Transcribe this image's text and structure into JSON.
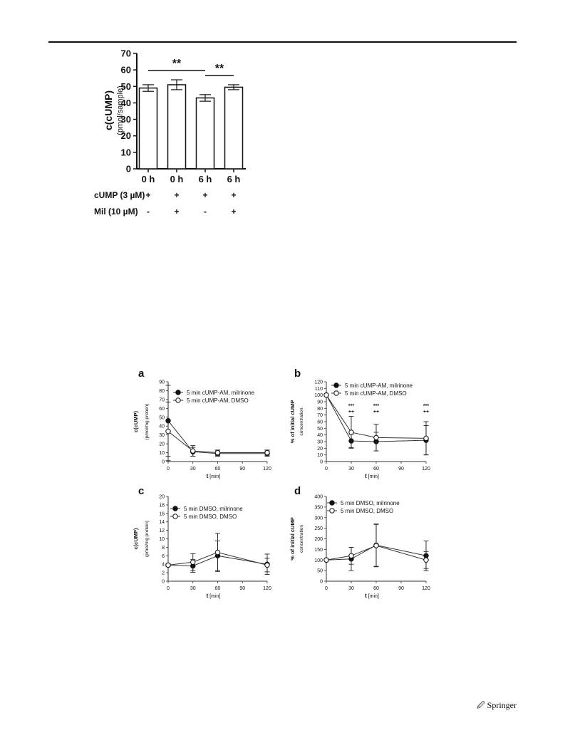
{
  "footer": {
    "publisher": "Springer"
  },
  "chart_data": [
    {
      "id": "top",
      "type": "bar",
      "categories": [
        "0 h",
        "0 h",
        "6 h",
        "6 h"
      ],
      "values": [
        49,
        51,
        43,
        49.5
      ],
      "errors": [
        2,
        3,
        2,
        1.5
      ],
      "title": "",
      "xlabel": "",
      "ylabel": "c(cUMP)",
      "ylabel_sub": "(pmol/sample)",
      "ylim": [
        0,
        70
      ],
      "yticks": [
        0,
        10,
        20,
        30,
        40,
        50,
        60,
        70
      ],
      "significance": [
        {
          "from": 0,
          "to": 2,
          "label": "**"
        },
        {
          "from": 2,
          "to": 3,
          "label": "**"
        }
      ],
      "conditions": [
        {
          "label": "cUMP (3 µM)",
          "marks": [
            "+",
            "+",
            "+",
            "+"
          ]
        },
        {
          "label": "Mil (10 µM)",
          "marks": [
            "-",
            "+",
            "-",
            "+"
          ]
        }
      ]
    },
    {
      "id": "a",
      "type": "line",
      "panel_label": "a",
      "x": [
        0,
        30,
        60,
        120
      ],
      "xticks": [
        0,
        30,
        60,
        90,
        120
      ],
      "xlim": [
        0,
        120
      ],
      "ylim": [
        0,
        90
      ],
      "yticks": [
        0,
        10,
        20,
        30,
        40,
        50,
        60,
        70,
        80,
        90
      ],
      "xlabel": "t",
      "xlabel_unit": "[min]",
      "ylabel": "c(cUMP)",
      "ylabel_sub": "(pmol/mg protein)",
      "legend_position": "top-right",
      "series": [
        {
          "name": "5 min cUMP-AM, milrinone",
          "marker": "filled",
          "values": [
            46,
            11,
            9,
            9
          ],
          "errors": [
            40,
            5,
            3,
            3
          ]
        },
        {
          "name": "5 min cUMP-AM, DMSO",
          "marker": "open",
          "values": [
            34,
            12,
            10,
            10
          ],
          "errors": [
            33,
            6,
            3,
            3
          ]
        }
      ]
    },
    {
      "id": "b",
      "type": "line",
      "panel_label": "b",
      "x": [
        0,
        30,
        60,
        120
      ],
      "xticks": [
        0,
        30,
        60,
        90,
        120
      ],
      "xlim": [
        0,
        120
      ],
      "ylim": [
        0,
        120
      ],
      "yticks": [
        0,
        10,
        20,
        30,
        40,
        50,
        60,
        70,
        80,
        90,
        100,
        110,
        120
      ],
      "xlabel": "t",
      "xlabel_unit": "[min]",
      "ylabel": "% of initial cUMP",
      "ylabel_sub": "concentration",
      "legend_position": "top-right",
      "series": [
        {
          "name": "5 min cUMP-AM, milrinone",
          "marker": "filled",
          "values": [
            100,
            31,
            30,
            32
          ],
          "errors": [
            0,
            10,
            14,
            22
          ]
        },
        {
          "name": "5 min cUMP-AM, DMSO",
          "marker": "open",
          "values": [
            100,
            44,
            36,
            35
          ],
          "errors": [
            0,
            24,
            20,
            25
          ]
        }
      ],
      "annotations": [
        {
          "x": 30,
          "lines": [
            "***",
            "++"
          ]
        },
        {
          "x": 60,
          "lines": [
            "***",
            "++"
          ]
        },
        {
          "x": 120,
          "lines": [
            "***",
            "++"
          ]
        }
      ]
    },
    {
      "id": "c",
      "type": "line",
      "panel_label": "c",
      "x": [
        0,
        30,
        60,
        120
      ],
      "xticks": [
        0,
        30,
        60,
        90,
        120
      ],
      "xlim": [
        0,
        120
      ],
      "ylim": [
        0,
        20
      ],
      "yticks": [
        0,
        2,
        4,
        6,
        8,
        10,
        12,
        14,
        16,
        18,
        20
      ],
      "xlabel": "t",
      "xlabel_unit": "[min]",
      "ylabel": "c(cUMP)",
      "ylabel_sub": "(pmol/mg protein)",
      "legend_position": "top-left",
      "series": [
        {
          "name": "5 min DMSO, milrinone",
          "marker": "filled",
          "values": [
            3.8,
            3.6,
            6,
            4
          ],
          "errors": [
            0.3,
            1.5,
            3.5,
            2.4
          ]
        },
        {
          "name": "5 min DMSO, DMSO",
          "marker": "open",
          "values": [
            3.8,
            4.5,
            6.8,
            3.8
          ],
          "errors": [
            0.3,
            2,
            4.5,
            1.6
          ]
        }
      ]
    },
    {
      "id": "d",
      "type": "line",
      "panel_label": "d",
      "x": [
        0,
        30,
        60,
        120
      ],
      "xticks": [
        0,
        30,
        60,
        90,
        120
      ],
      "xlim": [
        0,
        120
      ],
      "ylim": [
        0,
        400
      ],
      "yticks": [
        0,
        50,
        100,
        150,
        200,
        250,
        300,
        350,
        400
      ],
      "xlabel": "t",
      "xlabel_unit": "[min]",
      "ylabel": "% of initial cUMP",
      "ylabel_sub": "concentration",
      "legend_position": "top-left",
      "series": [
        {
          "name": "5 min DMSO, milrinone",
          "marker": "filled",
          "values": [
            100,
            105,
            170,
            120
          ],
          "errors": [
            0,
            55,
            100,
            70
          ]
        },
        {
          "name": "5 min DMSO, DMSO",
          "marker": "open",
          "values": [
            100,
            120,
            168,
            100
          ],
          "errors": [
            0,
            40,
            100,
            40
          ]
        }
      ]
    }
  ]
}
